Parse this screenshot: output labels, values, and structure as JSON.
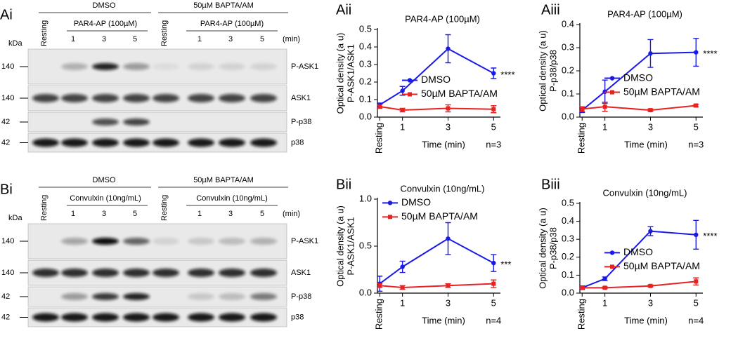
{
  "blots": [
    {
      "panel": "Ai",
      "groups": [
        "DMSO",
        "50µM BAPTA/AM"
      ],
      "treatments": [
        "PAR4-AP (100µM)",
        "PAR4-AP (100µM)"
      ],
      "lanes": [
        "Resting",
        "1",
        "3",
        "5",
        "Resting",
        "1",
        "3",
        "5"
      ],
      "time_unit": "(min)",
      "marker_unit": "kDa",
      "rows": [
        {
          "marker": 140,
          "name": "P-ASK1"
        },
        {
          "marker": 140,
          "name": "ASK1"
        },
        {
          "marker": 42,
          "name": "P-p38"
        },
        {
          "marker": 42,
          "name": "p38"
        }
      ]
    },
    {
      "panel": "Bi",
      "groups": [
        "DMSO",
        "50µM BAPTA/AM"
      ],
      "treatments": [
        "Convulxin (10ng/mL)",
        "Convulxin (10ng/mL)"
      ],
      "lanes": [
        "Resting",
        "1",
        "3",
        "5",
        "Resting",
        "1",
        "3",
        "5"
      ],
      "time_unit": "(min)",
      "marker_unit": "kDa",
      "rows": [
        {
          "marker": 140,
          "name": "P-ASK1"
        },
        {
          "marker": 140,
          "name": "ASK1"
        },
        {
          "marker": 42,
          "name": "P-p38"
        },
        {
          "marker": 42,
          "name": "p38"
        }
      ]
    }
  ],
  "chart_data": [
    {
      "type": "line",
      "panel": "Aii",
      "title": "PAR4-AP (100µM)",
      "ylabel": [
        "Optical density (a u)",
        "P-ASK1/ASK1"
      ],
      "xlabel": "Time (min)",
      "note": "n=3",
      "significance": "****",
      "legend": "center-right",
      "x": [
        0,
        1,
        3,
        5
      ],
      "xlim": [
        -0.1,
        5.3
      ],
      "xticks": [
        {
          "value": 0,
          "label": "Resting"
        },
        1,
        3,
        5
      ],
      "ylim": [
        0,
        0.5
      ],
      "yticks": [
        {
          "value": 0,
          "label": "0.0"
        },
        0.1,
        0.2,
        0.3,
        0.4,
        0.5
      ],
      "series": [
        {
          "name": "DMSO",
          "color": "#1a1ae6",
          "values": [
            0.07,
            0.15,
            0.39,
            0.25
          ],
          "errors": [
            0.01,
            0.025,
            0.08,
            0.03
          ]
        },
        {
          "name": "50µM BAPTA/AM",
          "color": "#e62222",
          "values": [
            0.06,
            0.04,
            0.05,
            0.045
          ],
          "errors": [
            0.01,
            0.01,
            0.02,
            0.02
          ]
        }
      ]
    },
    {
      "type": "line",
      "panel": "Aiii",
      "title": "PAR4-AP (100µM)",
      "ylabel": [
        "Optical density (a u)",
        "P-p38/p38"
      ],
      "xlabel": "Time (min)",
      "note": "n=3",
      "significance": "****",
      "legend": "center-right",
      "x": [
        0,
        1,
        3,
        5
      ],
      "xlim": [
        -0.1,
        5.3
      ],
      "xticks": [
        {
          "value": 0,
          "label": "Resting"
        },
        1,
        3,
        5
      ],
      "ylim": [
        0,
        0.4
      ],
      "yticks": [
        {
          "value": 0,
          "label": "0.0"
        },
        0.1,
        0.2,
        0.3,
        0.4
      ],
      "series": [
        {
          "name": "DMSO",
          "color": "#1a1ae6",
          "values": [
            0.03,
            0.11,
            0.275,
            0.28
          ],
          "errors": [
            0.01,
            0.05,
            0.06,
            0.06
          ]
        },
        {
          "name": "50µM BAPTA/AM",
          "color": "#e62222",
          "values": [
            0.035,
            0.045,
            0.03,
            0.05
          ],
          "errors": [
            0.01,
            0.02,
            0.005,
            0.005
          ]
        }
      ]
    },
    {
      "type": "line",
      "panel": "Bii",
      "title": "Convulxin (10ng/mL)",
      "ylabel": [
        "Optical density (a u)",
        "P-ASK1/ASK1"
      ],
      "xlabel": "Time (min)",
      "note": "n=4",
      "significance": "***",
      "legend": "upper-left",
      "x": [
        0,
        1,
        3,
        5
      ],
      "xlim": [
        -0.1,
        5.3
      ],
      "xticks": [
        {
          "value": 0,
          "label": "Resting"
        },
        1,
        3,
        5
      ],
      "ylim": [
        0,
        1.0
      ],
      "yticks": [
        {
          "value": 0,
          "label": "0.0"
        },
        {
          "value": 0.5,
          "label": "0.5"
        },
        {
          "value": 1.0,
          "label": "1.0"
        }
      ],
      "series": [
        {
          "name": "DMSO",
          "color": "#1a1ae6",
          "values": [
            0.1,
            0.28,
            0.58,
            0.32
          ],
          "errors": [
            0.08,
            0.06,
            0.17,
            0.09
          ]
        },
        {
          "name": "50µM BAPTA/AM",
          "color": "#e62222",
          "values": [
            0.08,
            0.06,
            0.08,
            0.1
          ],
          "errors": [
            0.02,
            0.02,
            0.02,
            0.04
          ]
        }
      ]
    },
    {
      "type": "line",
      "panel": "Biii",
      "title": "Convulxin (10ng/mL)",
      "ylabel": [
        "Optical density (a u)",
        "P-p38/p38"
      ],
      "xlabel": "Time (min)",
      "note": "n=4",
      "significance": "****",
      "legend": "lower-right",
      "x": [
        0,
        1,
        3,
        5
      ],
      "xlim": [
        -0.1,
        5.3
      ],
      "xticks": [
        {
          "value": 0,
          "label": "Resting"
        },
        1,
        3,
        5
      ],
      "ylim": [
        0,
        0.5
      ],
      "yticks": [
        {
          "value": 0,
          "label": "0.0"
        },
        0.1,
        0.2,
        0.3,
        0.4,
        0.5
      ],
      "series": [
        {
          "name": "DMSO",
          "color": "#1a1ae6",
          "values": [
            0.03,
            0.08,
            0.345,
            0.325
          ],
          "errors": [
            0.01,
            0.01,
            0.025,
            0.08
          ]
        },
        {
          "name": "50µM BAPTA/AM",
          "color": "#e62222",
          "values": [
            0.03,
            0.03,
            0.04,
            0.065
          ],
          "errors": [
            0.005,
            0.005,
            0.005,
            0.02
          ]
        }
      ]
    }
  ]
}
